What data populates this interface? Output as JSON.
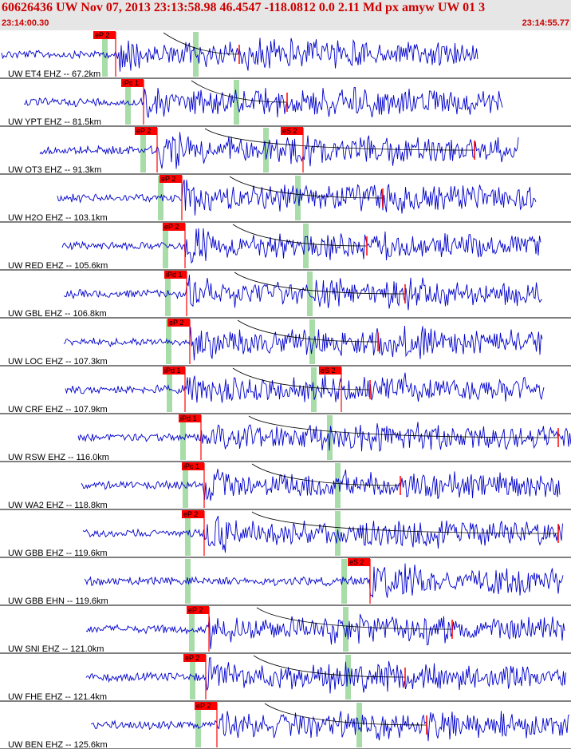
{
  "header": {
    "title": "60626436 UW Nov 07, 2013 23:13:58.98   46.4547 -118.0812  0.0 2.11 Md px amyw UW 01   3",
    "start_time": "23:14:00.30",
    "end_time": "23:14:55.77"
  },
  "colors": {
    "trace": "#0000cc",
    "pick": "#ff0000",
    "window": "#a8dca8",
    "header_bg": "#e6e6e6",
    "header_text": "#cc0000"
  },
  "traces": [
    {
      "label": "UW ET4 EHZ -- 67.2km",
      "picks": [
        {
          "text": "eP 2"
        }
      ]
    },
    {
      "label": "UW YPT EHZ -- 81.5km",
      "picks": [
        {
          "text": "iPc 1"
        }
      ]
    },
    {
      "label": "UW OT3 EHZ -- 91.3km",
      "picks": [
        {
          "text": "eP 2"
        },
        {
          "text": "eS 2"
        }
      ]
    },
    {
      "label": "UW H2O EHZ -- 103.1km",
      "picks": [
        {
          "text": "eP 2"
        }
      ]
    },
    {
      "label": "UW RED EHZ -- 105.6km",
      "picks": [
        {
          "text": "eP 2"
        }
      ]
    },
    {
      "label": "UW GBL EHZ -- 106.8km",
      "picks": [
        {
          "text": "iPd 1"
        }
      ]
    },
    {
      "label": "UW LOC EHZ -- 107.3km",
      "picks": [
        {
          "text": "eP 2"
        }
      ]
    },
    {
      "label": "UW CRF EHZ -- 107.9km",
      "picks": [
        {
          "text": "iPd 1"
        },
        {
          "text": "eS 2"
        }
      ]
    },
    {
      "label": "UW RSW EHZ -- 116.0km",
      "picks": [
        {
          "text": "iPd 1"
        }
      ]
    },
    {
      "label": "UW WA2 EHZ -- 118.8km",
      "picks": [
        {
          "text": "iPc 1"
        }
      ]
    },
    {
      "label": "UW GBB EHZ -- 119.6km",
      "picks": [
        {
          "text": "eP 2"
        }
      ]
    },
    {
      "label": "UW GBB EHN -- 119.6km",
      "picks": [
        {
          "text": "eS 2"
        }
      ]
    },
    {
      "label": "UW SNI EHZ -- 121.0km",
      "picks": [
        {
          "text": "eP 2"
        }
      ]
    },
    {
      "label": "UW FHE EHZ -- 121.4km",
      "picks": [
        {
          "text": "eP 2"
        }
      ]
    },
    {
      "label": "UW BEN EHZ -- 125.6km",
      "picks": [
        {
          "text": "eP 2"
        }
      ]
    }
  ]
}
